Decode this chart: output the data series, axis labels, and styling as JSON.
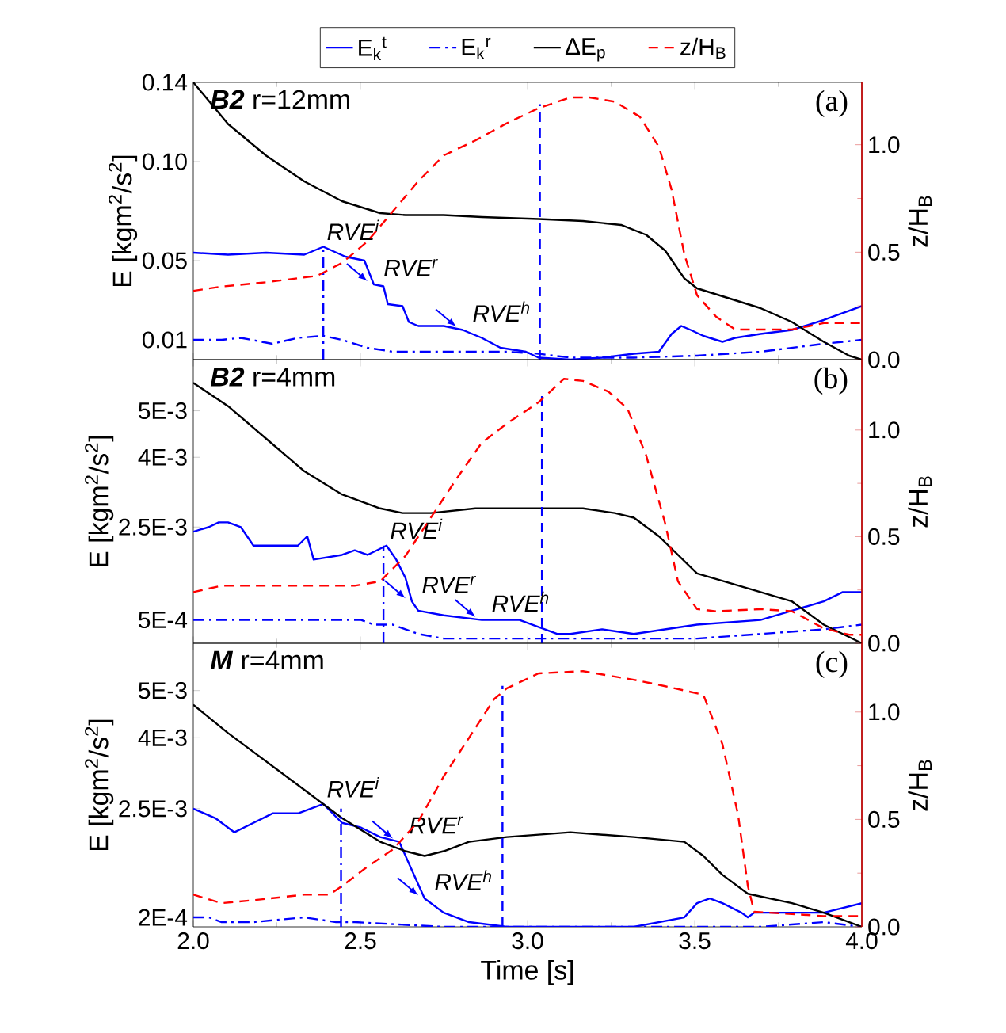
{
  "chart_data": [
    {
      "type": "line",
      "title": "**B2** r=12mm",
      "ylabel": "E [kgm$^{2}$/s$^{2}$]",
      "y2label": "z/H$_{B}$",
      "legend": "top",
      "tick_labels": "y",
      "annotations": [
        "(a)",
        {
          "text": "RVE$^{i}$",
          "x": 2.389,
          "y": 0.057
        },
        {
          "text": "RVE$^{r}$",
          "x": 2.54,
          "y": 0.038
        },
        {
          "text": "RVE$^{h}$",
          "x": 2.806,
          "y": 0.015
        }
      ],
      "xlim": [
        2,
        4
      ],
      "xticks": [
        {
          "value": 2,
          "label": null
        },
        {
          "value": 2.5,
          "label": null
        },
        {
          "value": 3,
          "label": null
        },
        {
          "value": 3.5,
          "label": null
        },
        {
          "value": 4,
          "label": null
        }
      ],
      "ylim": [
        0,
        0.14
      ],
      "yticks": [
        0.01,
        0.05,
        {
          "value": 0.1,
          "label": "0.10"
        },
        0.14
      ],
      "y2lim": [
        0,
        1.29
      ],
      "y2ticks": [
        {
          "value": 0,
          "label": "0.0"
        },
        {
          "value": 0.5,
          "label": "0.5"
        },
        {
          "value": 1,
          "label": "1.0"
        }
      ],
      "series": [
        {
          "name": "E$_{k}$$^{t}$",
          "color": "#0000ff",
          "line_style": "solid",
          "x": [
            2.0,
            2.104,
            2.218,
            2.332,
            2.389,
            2.455,
            2.512,
            2.54,
            2.569,
            2.582,
            2.626,
            2.645,
            2.673,
            2.749,
            2.806,
            2.863,
            2.919,
            2.995,
            3.033,
            3.128,
            3.223,
            3.318,
            3.393,
            3.431,
            3.46,
            3.488,
            3.526,
            3.583,
            3.621,
            3.697,
            3.791,
            3.886,
            4.0
          ],
          "values": [
            0.054,
            0.053,
            0.054,
            0.053,
            0.057,
            0.052,
            0.05,
            0.038,
            0.037,
            0.028,
            0.027,
            0.019,
            0.017,
            0.017,
            0.015,
            0.011,
            0.006,
            0.004,
            0.001,
            0,
            0.001,
            0.003,
            0.004,
            0.013,
            0.017,
            0.015,
            0.012,
            0.009,
            0.011,
            0.013,
            0.015,
            0.02,
            0.027
          ]
        },
        {
          "name": "E$_{k}$$^{r}$",
          "color": "#0000ff",
          "line_style": "dashdot",
          "x": [
            2.0,
            2.085,
            2.142,
            2.237,
            2.313,
            2.389,
            2.445,
            2.521,
            2.597,
            2.749,
            2.938,
            3.033,
            3.128,
            3.318,
            3.507,
            3.697,
            3.886,
            4.0
          ],
          "values": [
            0.01,
            0.01,
            0.011,
            0.008,
            0.011,
            0.012,
            0.01,
            0.006,
            0.004,
            0.004,
            0.004,
            0.003,
            0.001,
            0.001,
            0.002,
            0.004,
            0.008,
            0.01
          ]
        },
        {
          "name": "ΔE$_{p}$",
          "color": "#000000",
          "line_style": "solid",
          "x": [
            2.0,
            2.104,
            2.218,
            2.332,
            2.445,
            2.559,
            2.635,
            2.749,
            2.863,
            3.033,
            3.166,
            3.28,
            3.355,
            3.412,
            3.469,
            3.507,
            3.602,
            3.697,
            3.791,
            3.886,
            3.962,
            4.0
          ],
          "values": [
            0.14,
            0.119,
            0.103,
            0.09,
            0.08,
            0.074,
            0.073,
            0.073,
            0.072,
            0.071,
            0.07,
            0.068,
            0.063,
            0.055,
            0.041,
            0.036,
            0.031,
            0.026,
            0.019,
            0.009,
            0.002,
            0
          ]
        },
        {
          "color": "#0000ff",
          "line_style": "dashdot",
          "x": [
            2.389,
            2.389
          ],
          "values": [
            0,
            0.057
          ]
        },
        {
          "color": "#0000ff",
          "line_style": "dashed",
          "x": [
            3.037,
            3.037
          ],
          "values": [
            0,
            0.129
          ]
        },
        {
          "name": "z/H$_{B}$",
          "color": "#ff0000",
          "line_style": "dashed",
          "axis": "y2",
          "x": [
            2.0,
            2.085,
            2.218,
            2.37,
            2.445,
            2.521,
            2.597,
            2.673,
            2.749,
            2.844,
            2.938,
            3.033,
            3.128,
            3.185,
            3.261,
            3.336,
            3.393,
            3.431,
            3.469,
            3.507,
            3.564,
            3.621,
            3.697,
            3.791,
            3.886,
            4.0
          ],
          "values": [
            0.32,
            0.34,
            0.36,
            0.39,
            0.45,
            0.55,
            0.69,
            0.83,
            0.95,
            1.02,
            1.1,
            1.17,
            1.22,
            1.22,
            1.2,
            1.13,
            0.99,
            0.79,
            0.49,
            0.3,
            0.2,
            0.14,
            0.14,
            0.14,
            0.17,
            0.17
          ]
        }
      ]
    },
    {
      "type": "line",
      "title": "**B2** r=4mm",
      "ylabel": "E [kgm$^{2}$/s$^{2}$]",
      "y2label": "z/H$_{B}$",
      "tick_labels": "y",
      "annotations": [
        "(b)",
        {
          "text": "RVE$^{i}$",
          "x": 2.578,
          "y": 0.0021
        },
        {
          "text": "RVE$^{r}$",
          "x": 2.654,
          "y": 0.0009
        },
        {
          "text": "RVE$^{h}$",
          "x": 2.863,
          "y": 0.0005
        }
      ],
      "xlim": [
        2,
        4
      ],
      "xticks": [
        {
          "value": 2,
          "label": null
        },
        {
          "value": 2.5,
          "label": null
        },
        {
          "value": 3,
          "label": null
        },
        {
          "value": 3.5,
          "label": null
        },
        {
          "value": 4,
          "label": null
        }
      ],
      "ylim": [
        0,
        0.0061
      ],
      "yticks": [
        {
          "value": 0.0005,
          "label": "5E-4"
        },
        {
          "value": 0.0025,
          "label": "2.5E-3"
        },
        {
          "value": 0.004,
          "label": "4E-3"
        },
        {
          "value": 0.005,
          "label": "5E-3"
        }
      ],
      "y2lim": [
        0,
        1.33
      ],
      "y2ticks": [
        {
          "value": 0,
          "label": "0.0"
        },
        {
          "value": 0.5,
          "label": "0.5"
        },
        {
          "value": 1,
          "label": "1.0"
        }
      ],
      "series": [
        {
          "color": "#0000ff",
          "line_style": "solid",
          "x": [
            2.0,
            2.047,
            2.076,
            2.104,
            2.142,
            2.18,
            2.256,
            2.313,
            2.341,
            2.36,
            2.445,
            2.483,
            2.521,
            2.578,
            2.607,
            2.635,
            2.654,
            2.673,
            2.749,
            2.863,
            2.976,
            3.09,
            3.128,
            3.223,
            3.318,
            3.507,
            3.697,
            3.791,
            3.886,
            3.943,
            4.0
          ],
          "values": [
            0.0024,
            0.0025,
            0.0026,
            0.0026,
            0.0025,
            0.0021,
            0.0021,
            0.0021,
            0.0023,
            0.0018,
            0.0019,
            0.002,
            0.0019,
            0.0021,
            0.0018,
            0.0014,
            0.0009,
            0.0007,
            0.0006,
            0.0005,
            0.0005,
            0.0002,
            0.0002,
            0.0003,
            0.0002,
            0.0004,
            0.0005,
            0.0007,
            0.0009,
            0.0011,
            0.0011
          ]
        },
        {
          "color": "#0000ff",
          "line_style": "dashdot",
          "x": [
            2.0,
            2.18,
            2.37,
            2.502,
            2.54,
            2.597,
            2.673,
            2.749,
            2.938,
            3.128,
            3.318,
            3.507,
            3.697,
            3.886,
            4.0
          ],
          "values": [
            0.0005,
            0.0005,
            0.0005,
            0.0005,
            0.0004,
            0.0004,
            0.0002,
            0.0001,
            0.0001,
            0.0001,
            0.0001,
            0.0001,
            0.0002,
            0.0003,
            0.0004
          ]
        },
        {
          "color": "#000000",
          "line_style": "solid",
          "x": [
            2.0,
            2.104,
            2.218,
            2.332,
            2.445,
            2.559,
            2.626,
            2.711,
            2.844,
            2.938,
            3.052,
            3.166,
            3.261,
            3.318,
            3.393,
            3.45,
            3.507,
            3.602,
            3.697,
            3.791,
            3.886,
            3.943,
            4.0
          ],
          "values": [
            0.0056,
            0.0051,
            0.0044,
            0.0037,
            0.0032,
            0.0029,
            0.0028,
            0.0028,
            0.0029,
            0.0029,
            0.0029,
            0.0029,
            0.0028,
            0.0027,
            0.0023,
            0.0019,
            0.0015,
            0.0013,
            0.0011,
            0.0009,
            0.0004,
            0.0002,
            0
          ]
        },
        {
          "color": "#0000ff",
          "line_style": "dashdot",
          "x": [
            2.569,
            2.569
          ],
          "values": [
            0,
            0.0021
          ]
        },
        {
          "color": "#0000ff",
          "line_style": "dashed",
          "x": [
            3.043,
            3.043
          ],
          "values": [
            0,
            0.0054
          ]
        },
        {
          "color": "#ff0000",
          "line_style": "dashed",
          "axis": "y2",
          "x": [
            2.0,
            2.085,
            2.275,
            2.483,
            2.559,
            2.635,
            2.711,
            2.787,
            2.863,
            2.938,
            3.033,
            3.109,
            3.166,
            3.242,
            3.299,
            3.355,
            3.412,
            3.45,
            3.507,
            3.564,
            3.697,
            3.791,
            3.886,
            3.962,
            4.0
          ],
          "values": [
            0.24,
            0.27,
            0.27,
            0.27,
            0.29,
            0.41,
            0.59,
            0.77,
            0.94,
            1.03,
            1.13,
            1.24,
            1.23,
            1.18,
            1.1,
            0.88,
            0.56,
            0.29,
            0.16,
            0.15,
            0.16,
            0.15,
            0.07,
            0.04,
            0.04
          ]
        }
      ]
    },
    {
      "type": "line",
      "title": "**M**  r=4mm",
      "xlabel": "Time [s]",
      "ylabel": "E [kgm$^{2}$/s$^{2}$]",
      "y2label": "z/H$_{B}$",
      "annotations": [
        "(c)",
        {
          "text": "RVE$^{i}$",
          "x": 2.389,
          "y": 0.0026
        },
        {
          "text": "RVE$^{r}$",
          "x": 2.616,
          "y": 0.0018
        },
        {
          "text": "RVE$^{h}$",
          "x": 2.692,
          "y": 0.0006
        }
      ],
      "xlim": [
        2,
        4
      ],
      "xticks": [
        {
          "value": 2,
          "label": "2.0"
        },
        {
          "value": 2.5,
          "label": "2.5"
        },
        {
          "value": 3,
          "label": "3.0"
        },
        {
          "value": 3.5,
          "label": "3.5"
        },
        {
          "value": 4,
          "label": "4.0"
        }
      ],
      "ylim": [
        0,
        0.006
      ],
      "yticks": [
        {
          "value": 0.0002,
          "label": "2E-4"
        },
        {
          "value": 0.0025,
          "label": "2.5E-3"
        },
        {
          "value": 0.004,
          "label": "4E-3"
        },
        {
          "value": 0.005,
          "label": "5E-3"
        }
      ],
      "y2lim": [
        0,
        1.32
      ],
      "y2ticks": [
        {
          "value": 0,
          "label": "0.0"
        },
        {
          "value": 0.5,
          "label": "0.5"
        },
        {
          "value": 1,
          "label": "1.0"
        }
      ],
      "series": [
        {
          "color": "#0000ff",
          "line_style": "solid",
          "x": [
            2.0,
            2.066,
            2.123,
            2.18,
            2.237,
            2.313,
            2.389,
            2.445,
            2.502,
            2.559,
            2.616,
            2.654,
            2.692,
            2.749,
            2.825,
            2.938,
            3.318,
            3.469,
            3.507,
            3.545,
            3.583,
            3.64,
            3.659,
            3.678,
            3.791,
            3.886,
            3.943,
            4.0
          ],
          "values": [
            0.0025,
            0.0023,
            0.002,
            0.0022,
            0.0024,
            0.0024,
            0.0026,
            0.0022,
            0.0021,
            0.0019,
            0.0018,
            0.0012,
            0.0006,
            0.0003,
            0.0001,
            0,
            0,
            0.0002,
            0.0005,
            0.0006,
            0.0005,
            0.0003,
            0.0002,
            0.0003,
            0.0003,
            0.0003,
            0.0004,
            0.0005
          ]
        },
        {
          "color": "#0000ff",
          "line_style": "dashdot",
          "x": [
            2.0,
            2.047,
            2.085,
            2.18,
            2.332,
            2.427,
            2.483,
            2.749,
            3.318,
            3.697,
            3.886,
            4.0
          ],
          "values": [
            0.0002,
            0.0002,
            0.0001,
            0.0001,
            0.0002,
            0.0001,
            0.0001,
            0,
            0,
            0,
            0.0001,
            0
          ]
        },
        {
          "color": "#000000",
          "line_style": "solid",
          "x": [
            2.0,
            2.104,
            2.218,
            2.332,
            2.445,
            2.559,
            2.635,
            2.692,
            2.749,
            2.825,
            2.938,
            3.128,
            3.318,
            3.469,
            3.526,
            3.583,
            3.659,
            3.791,
            3.886,
            4.0
          ],
          "values": [
            0.0047,
            0.0041,
            0.0035,
            0.0029,
            0.0023,
            0.0018,
            0.0016,
            0.0015,
            0.0016,
            0.0018,
            0.0019,
            0.002,
            0.0019,
            0.0018,
            0.0015,
            0.0011,
            0.0007,
            0.0005,
            0.0003,
            0
          ]
        },
        {
          "color": "#0000ff",
          "line_style": "dashdot",
          "x": [
            2.442,
            2.442
          ],
          "values": [
            0,
            0.0025
          ]
        },
        {
          "color": "#0000ff",
          "line_style": "dashed",
          "x": [
            2.925,
            2.925
          ],
          "values": [
            0,
            0.0051
          ]
        },
        {
          "color": "#ff0000",
          "line_style": "dashed",
          "axis": "y2",
          "x": [
            2.0,
            2.085,
            2.218,
            2.332,
            2.408,
            2.445,
            2.521,
            2.597,
            2.673,
            2.749,
            2.825,
            2.9,
            2.938,
            3.033,
            3.166,
            3.318,
            3.412,
            3.526,
            3.583,
            3.63,
            3.659,
            3.678,
            3.791,
            3.886,
            4.0
          ],
          "values": [
            0.15,
            0.11,
            0.13,
            0.15,
            0.15,
            0.19,
            0.28,
            0.36,
            0.49,
            0.7,
            0.88,
            1.06,
            1.11,
            1.18,
            1.19,
            1.15,
            1.12,
            1.08,
            0.85,
            0.52,
            0.19,
            0.07,
            0.06,
            0.05,
            0.05
          ]
        }
      ]
    }
  ]
}
